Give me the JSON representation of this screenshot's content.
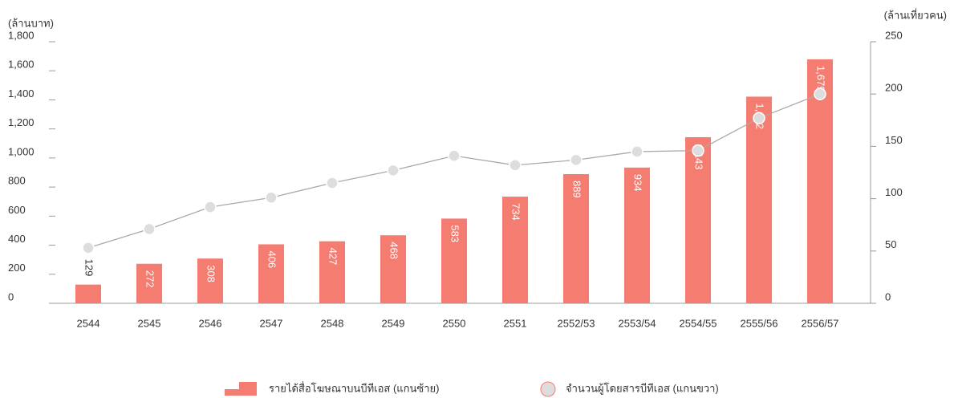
{
  "chart_data": {
    "type": "bar-line",
    "y_label": "(ล้านบาท)",
    "y2_label": "(ล้านเที่ยวคน)",
    "categories": [
      "2544",
      "2545",
      "2546",
      "2547",
      "2548",
      "2549",
      "2550",
      "2551",
      "2552/53",
      "2553/54",
      "2554/55",
      "2555/56",
      "2556/57"
    ],
    "series": [
      {
        "name": "รายได้สื่อโฆษณาบนบีทีเอส (แกนซ้าย)",
        "type": "bar",
        "color": "#f47c70",
        "axis": "y",
        "values": [
          129,
          272,
          308,
          406,
          427,
          468,
          583,
          734,
          889,
          934,
          1143,
          1422,
          1679
        ],
        "value_labels": [
          "129",
          "272",
          "308",
          "406",
          "427",
          "468",
          "583",
          "734",
          "889",
          "934",
          "1,143",
          "1,422",
          "1,679"
        ]
      },
      {
        "name": "จำนวนผู้โดยสารบีทีเอส (แกนขวา)",
        "type": "line",
        "color": "#aaaaaa",
        "marker_color": "#dddddd",
        "axis": "y2",
        "values": [
          53,
          71,
          92,
          101,
          115,
          127,
          141,
          132,
          137,
          145,
          146,
          177,
          200
        ]
      }
    ],
    "ylim": [
      0,
      1800
    ],
    "yticks": [
      0,
      200,
      400,
      600,
      800,
      {
        "value": 1000,
        "label": "1,000"
      },
      {
        "value": 1200,
        "label": "1,200"
      },
      {
        "value": 1400,
        "label": "1,400"
      },
      {
        "value": 1600,
        "label": "1,600"
      },
      {
        "value": 1800,
        "label": "1,800"
      }
    ],
    "y2lim": [
      0,
      250
    ],
    "y2ticks": [
      0,
      50,
      100,
      150,
      200,
      250
    ],
    "legend": "bottom"
  }
}
